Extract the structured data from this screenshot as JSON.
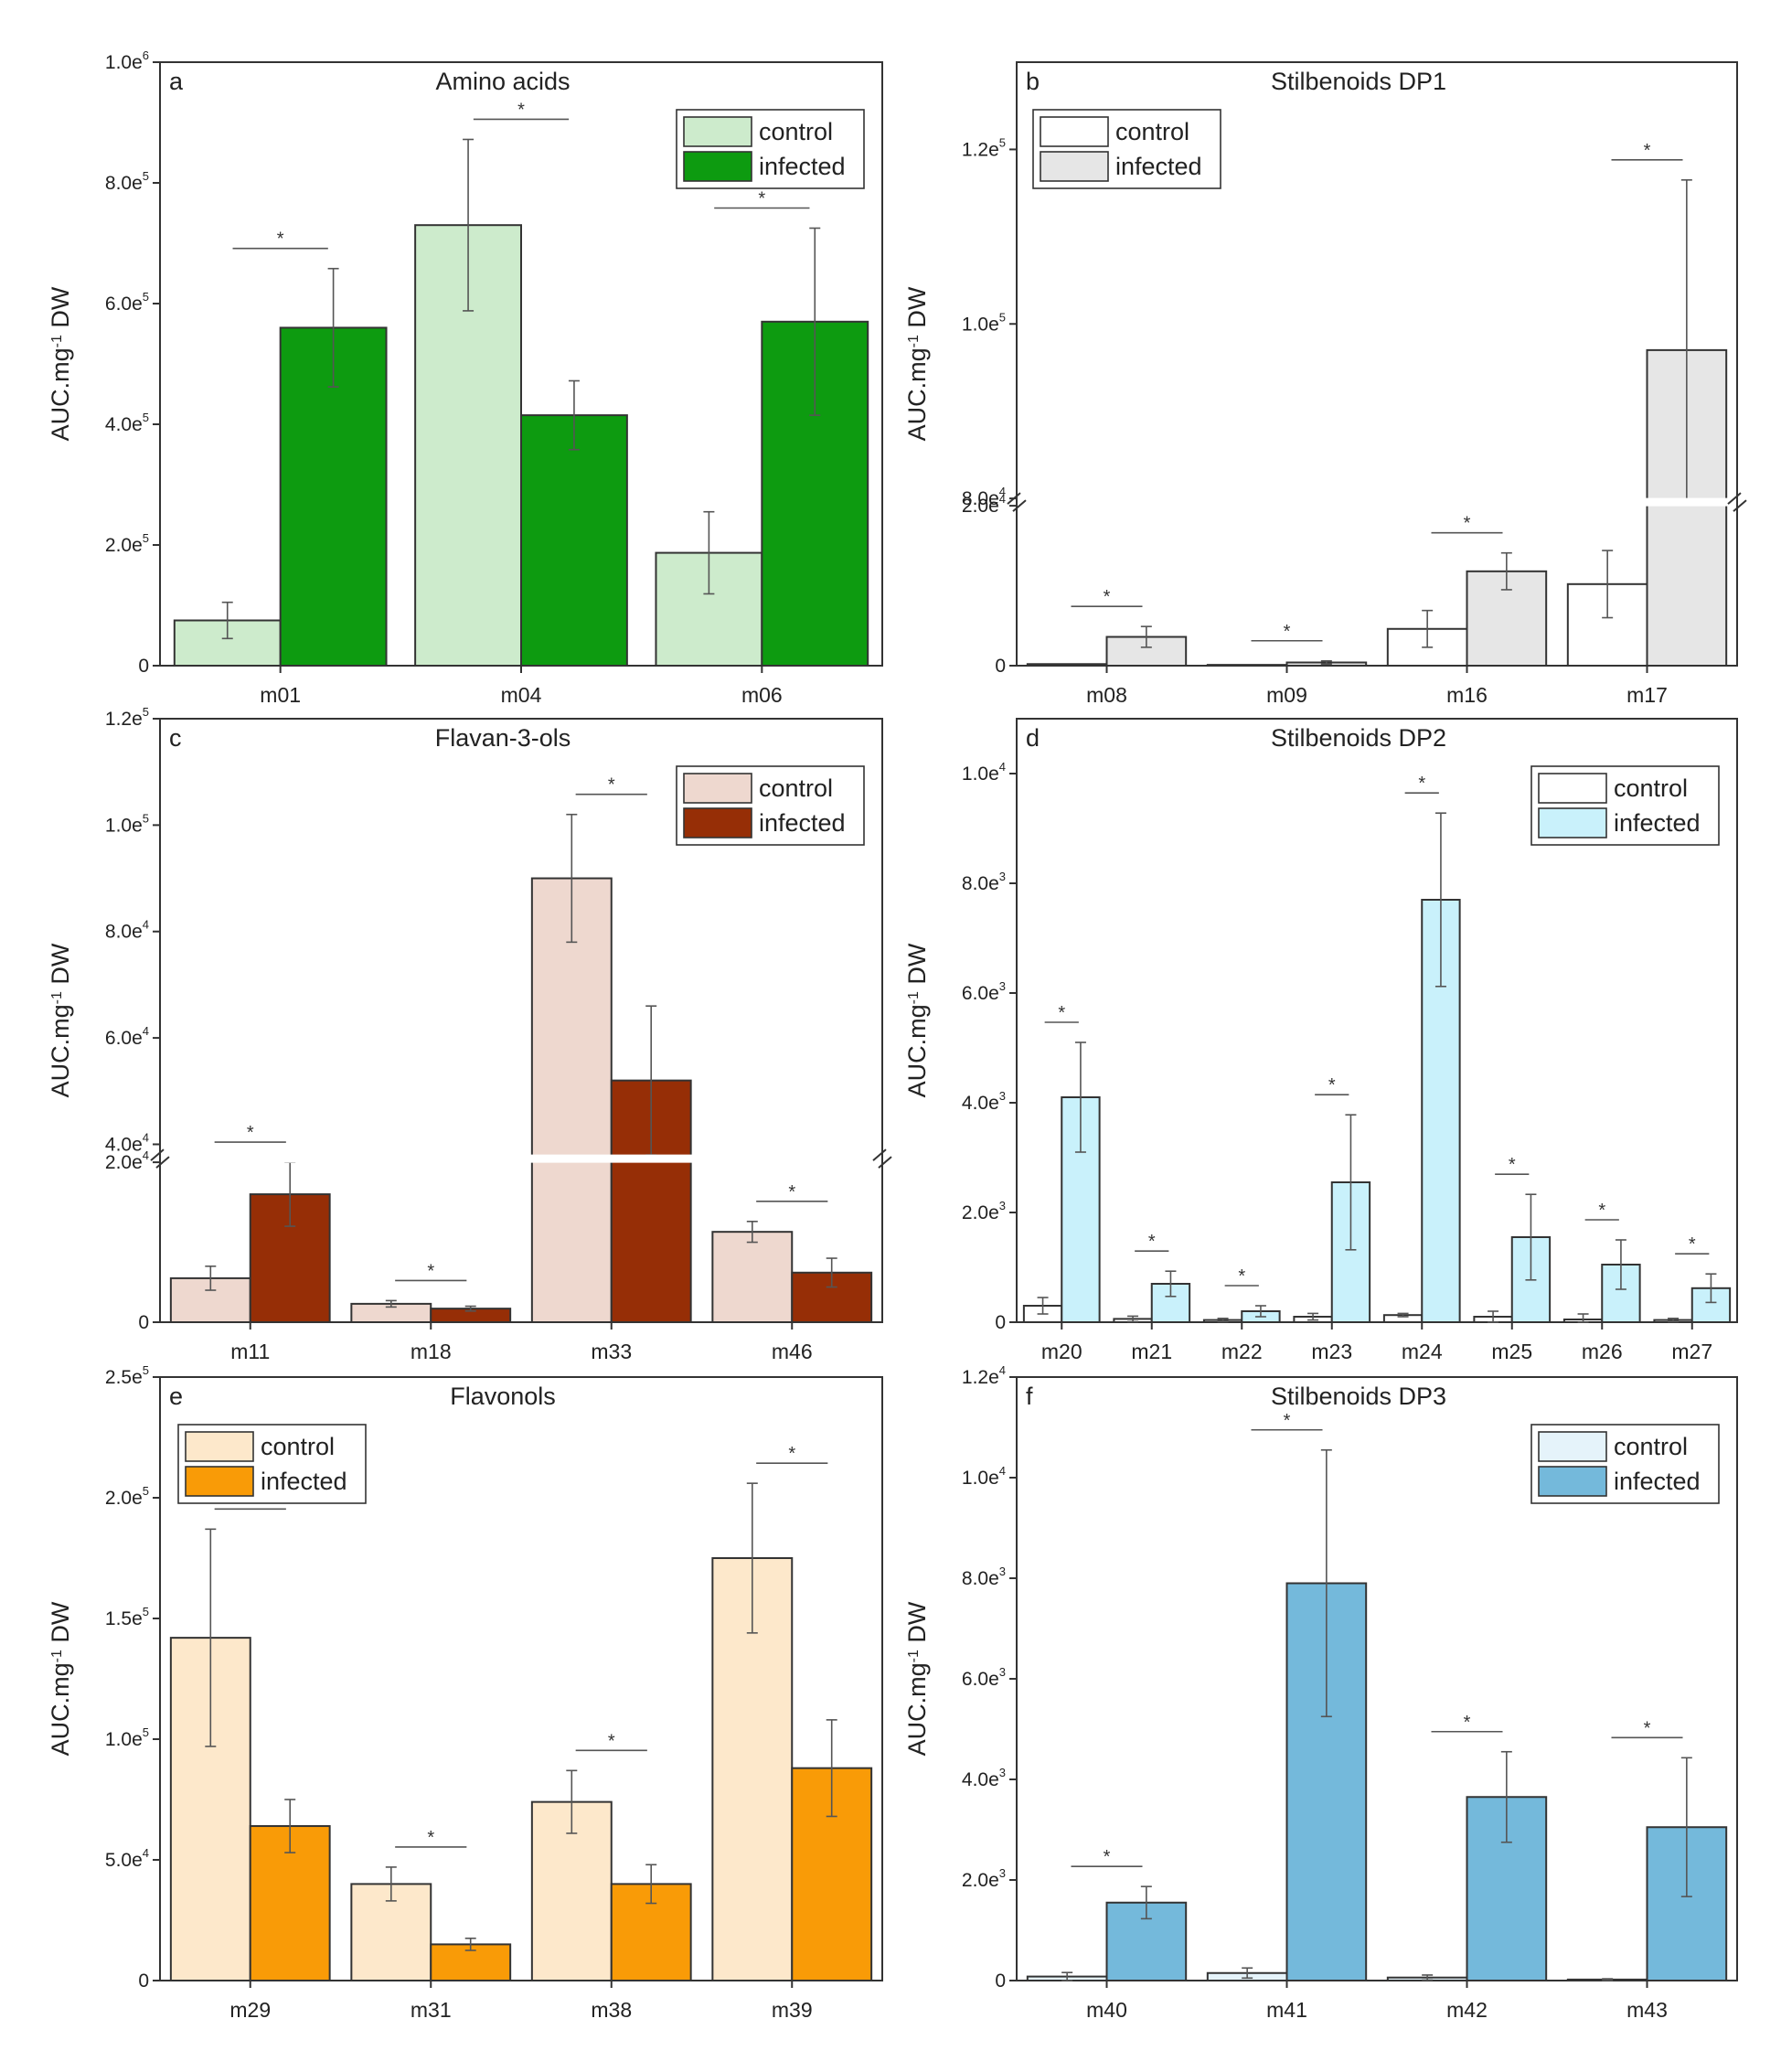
{
  "chart_data": [
    {
      "type": "bar",
      "letter": "a",
      "title": "Amino acids",
      "ylabel": "AUC.mg-1 DW",
      "ylabel_parts": [
        "AUC.mg",
        "-1",
        " DW"
      ],
      "legend": [
        "control",
        "infected"
      ],
      "legend_position": "top-right",
      "colors": {
        "control": "#cdebcc",
        "infected": "#0d9b10"
      },
      "categories": [
        "m01",
        "m04",
        "m06"
      ],
      "series": [
        {
          "name": "control",
          "values": [
            75000,
            730000,
            187000
          ],
          "errors": [
            30000,
            142000,
            68000
          ]
        },
        {
          "name": "infected",
          "values": [
            560000,
            415000,
            570000
          ],
          "errors": [
            98000,
            57000,
            155000
          ]
        }
      ],
      "significant": [
        true,
        true,
        true
      ],
      "ylim": [
        0,
        1000000
      ],
      "yticks": [
        {
          "v": 0,
          "m": "0",
          "e": ""
        },
        {
          "v": 200000,
          "m": "2.0e",
          "e": "5"
        },
        {
          "v": 400000,
          "m": "4.0e",
          "e": "5"
        },
        {
          "v": 600000,
          "m": "6.0e",
          "e": "5"
        },
        {
          "v": 800000,
          "m": "8.0e",
          "e": "5"
        },
        {
          "v": 1000000,
          "m": "1.0e",
          "e": "6"
        }
      ]
    },
    {
      "type": "bar",
      "letter": "b",
      "title": "Stilbenoids DP1",
      "ylabel": "AUC.mg-1 DW",
      "ylabel_parts": [
        "AUC.mg",
        "-1",
        " DW"
      ],
      "legend": [
        "control",
        "infected"
      ],
      "legend_position": "top-left",
      "colors": {
        "control": "#ffffff",
        "infected": "#e6e6e6"
      },
      "categories": [
        "m08",
        "m09",
        "m16",
        "m17"
      ],
      "series": [
        {
          "name": "control",
          "values": [
            200,
            100,
            4600,
            10200
          ],
          "errors": [
            0,
            0,
            2300,
            4200
          ]
        },
        {
          "name": "infected",
          "values": [
            3600,
            400,
            11800,
            97000
          ],
          "errors": [
            1300,
            200,
            2300,
            19500
          ]
        }
      ],
      "significant": [
        true,
        true,
        true,
        true
      ],
      "y_break": [
        20000,
        80000
      ],
      "ylim": [
        0,
        130000
      ],
      "yticks": [
        {
          "v": 0,
          "m": "0",
          "e": ""
        },
        {
          "v": 20000,
          "m": "2.0e",
          "e": "4"
        },
        {
          "v": 80000,
          "m": "8.0e",
          "e": "4"
        },
        {
          "v": 100000,
          "m": "1.0e",
          "e": "5"
        },
        {
          "v": 120000,
          "m": "1.2e",
          "e": "5"
        }
      ]
    },
    {
      "type": "bar",
      "letter": "c",
      "title": "Flavan-3-ols",
      "ylabel": "AUC.mg-1 DW",
      "ylabel_parts": [
        "AUC.mg",
        "-1",
        " DW"
      ],
      "legend": [
        "control",
        "infected"
      ],
      "legend_position": "top-right",
      "colors": {
        "control": "#eed8cf",
        "infected": "#962e06"
      },
      "categories": [
        "m11",
        "m18",
        "m33",
        "m46"
      ],
      "series": [
        {
          "name": "control",
          "values": [
            5500,
            2300,
            90000,
            11300
          ],
          "errors": [
            1500,
            400,
            12000,
            1300
          ]
        },
        {
          "name": "infected",
          "values": [
            16000,
            1700,
            52000,
            6200
          ],
          "errors": [
            4000,
            300,
            14000,
            1800
          ]
        }
      ],
      "significant": [
        true,
        true,
        true,
        true
      ],
      "y_break": [
        20000,
        38000
      ],
      "ylim": [
        0,
        120000
      ],
      "yticks": [
        {
          "v": 0,
          "m": "0",
          "e": ""
        },
        {
          "v": 20000,
          "m": "2.0e",
          "e": "4"
        },
        {
          "v": 40000,
          "m": "4.0e",
          "e": "4"
        },
        {
          "v": 60000,
          "m": "6.0e",
          "e": "4"
        },
        {
          "v": 80000,
          "m": "8.0e",
          "e": "4"
        },
        {
          "v": 100000,
          "m": "1.0e",
          "e": "5"
        },
        {
          "v": 120000,
          "m": "1.2e",
          "e": "5"
        }
      ]
    },
    {
      "type": "bar",
      "letter": "d",
      "title": "Stilbenoids DP2",
      "ylabel": "AUC.mg-1 DW",
      "ylabel_parts": [
        "AUC.mg",
        "-1",
        " DW"
      ],
      "legend": [
        "control",
        "infected"
      ],
      "legend_position": "top-right",
      "colors": {
        "control": "#ffffff",
        "infected": "#c9f1fb"
      },
      "categories": [
        "m20",
        "m21",
        "m22",
        "m23",
        "m24",
        "m25",
        "m26",
        "m27"
      ],
      "series": [
        {
          "name": "control",
          "values": [
            300,
            60,
            40,
            100,
            130,
            100,
            50,
            40
          ],
          "errors": [
            150,
            50,
            30,
            60,
            30,
            100,
            100,
            30
          ]
        },
        {
          "name": "infected",
          "values": [
            4100,
            700,
            200,
            2550,
            7700,
            1550,
            1050,
            620
          ],
          "errors": [
            1000,
            230,
            100,
            1230,
            1580,
            780,
            450,
            260
          ]
        }
      ],
      "significant": [
        true,
        true,
        true,
        true,
        true,
        true,
        true,
        true
      ],
      "ylim": [
        0,
        11000
      ],
      "yticks": [
        {
          "v": 0,
          "m": "0",
          "e": ""
        },
        {
          "v": 2000,
          "m": "2.0e",
          "e": "3"
        },
        {
          "v": 4000,
          "m": "4.0e",
          "e": "3"
        },
        {
          "v": 6000,
          "m": "6.0e",
          "e": "3"
        },
        {
          "v": 8000,
          "m": "8.0e",
          "e": "3"
        },
        {
          "v": 10000,
          "m": "1.0e",
          "e": "4"
        }
      ]
    },
    {
      "type": "bar",
      "letter": "e",
      "title": "Flavonols",
      "ylabel": "AUC.mg-1 DW",
      "ylabel_parts": [
        "AUC.mg",
        "-1",
        " DW"
      ],
      "legend": [
        "control",
        "infected"
      ],
      "legend_position": "top-left",
      "colors": {
        "control": "#fde8cb",
        "infected": "#f99b07"
      },
      "categories": [
        "m29",
        "m31",
        "m38",
        "m39"
      ],
      "series": [
        {
          "name": "control",
          "values": [
            142000,
            40000,
            74000,
            175000
          ],
          "errors": [
            45000,
            7000,
            13000,
            31000
          ]
        },
        {
          "name": "infected",
          "values": [
            64000,
            15000,
            40000,
            88000
          ],
          "errors": [
            11000,
            2500,
            8000,
            20000
          ]
        }
      ],
      "significant": [
        true,
        true,
        true,
        true
      ],
      "ylim": [
        0,
        250000
      ],
      "yticks": [
        {
          "v": 0,
          "m": "0",
          "e": ""
        },
        {
          "v": 50000,
          "m": "5.0e",
          "e": "4"
        },
        {
          "v": 100000,
          "m": "1.0e",
          "e": "5"
        },
        {
          "v": 150000,
          "m": "1.5e",
          "e": "5"
        },
        {
          "v": 200000,
          "m": "2.0e",
          "e": "5"
        },
        {
          "v": 250000,
          "m": "2.5e",
          "e": "5"
        }
      ]
    },
    {
      "type": "bar",
      "letter": "f",
      "title": "Stilbenoids DP3",
      "ylabel": "AUC.mg-1 DW",
      "ylabel_parts": [
        "AUC.mg",
        "-1",
        " DW"
      ],
      "legend": [
        "control",
        "infected"
      ],
      "legend_position": "top-right",
      "colors": {
        "control": "#e5f3fa",
        "infected": "#74b9db"
      },
      "categories": [
        "m40",
        "m41",
        "m42",
        "m43"
      ],
      "series": [
        {
          "name": "control",
          "values": [
            80,
            150,
            60,
            20
          ],
          "errors": [
            80,
            100,
            50,
            15
          ]
        },
        {
          "name": "infected",
          "values": [
            1550,
            7900,
            3650,
            3050
          ],
          "errors": [
            320,
            2650,
            900,
            1380
          ]
        }
      ],
      "significant": [
        true,
        true,
        true,
        true
      ],
      "ylim": [
        0,
        12000
      ],
      "yticks": [
        {
          "v": 0,
          "m": "0",
          "e": ""
        },
        {
          "v": 2000,
          "m": "2.0e",
          "e": "3"
        },
        {
          "v": 4000,
          "m": "4.0e",
          "e": "3"
        },
        {
          "v": 6000,
          "m": "6.0e",
          "e": "3"
        },
        {
          "v": 8000,
          "m": "8.0e",
          "e": "3"
        },
        {
          "v": 10000,
          "m": "1.0e",
          "e": "4"
        },
        {
          "v": 12000,
          "m": "1.2e",
          "e": "4"
        }
      ]
    }
  ]
}
